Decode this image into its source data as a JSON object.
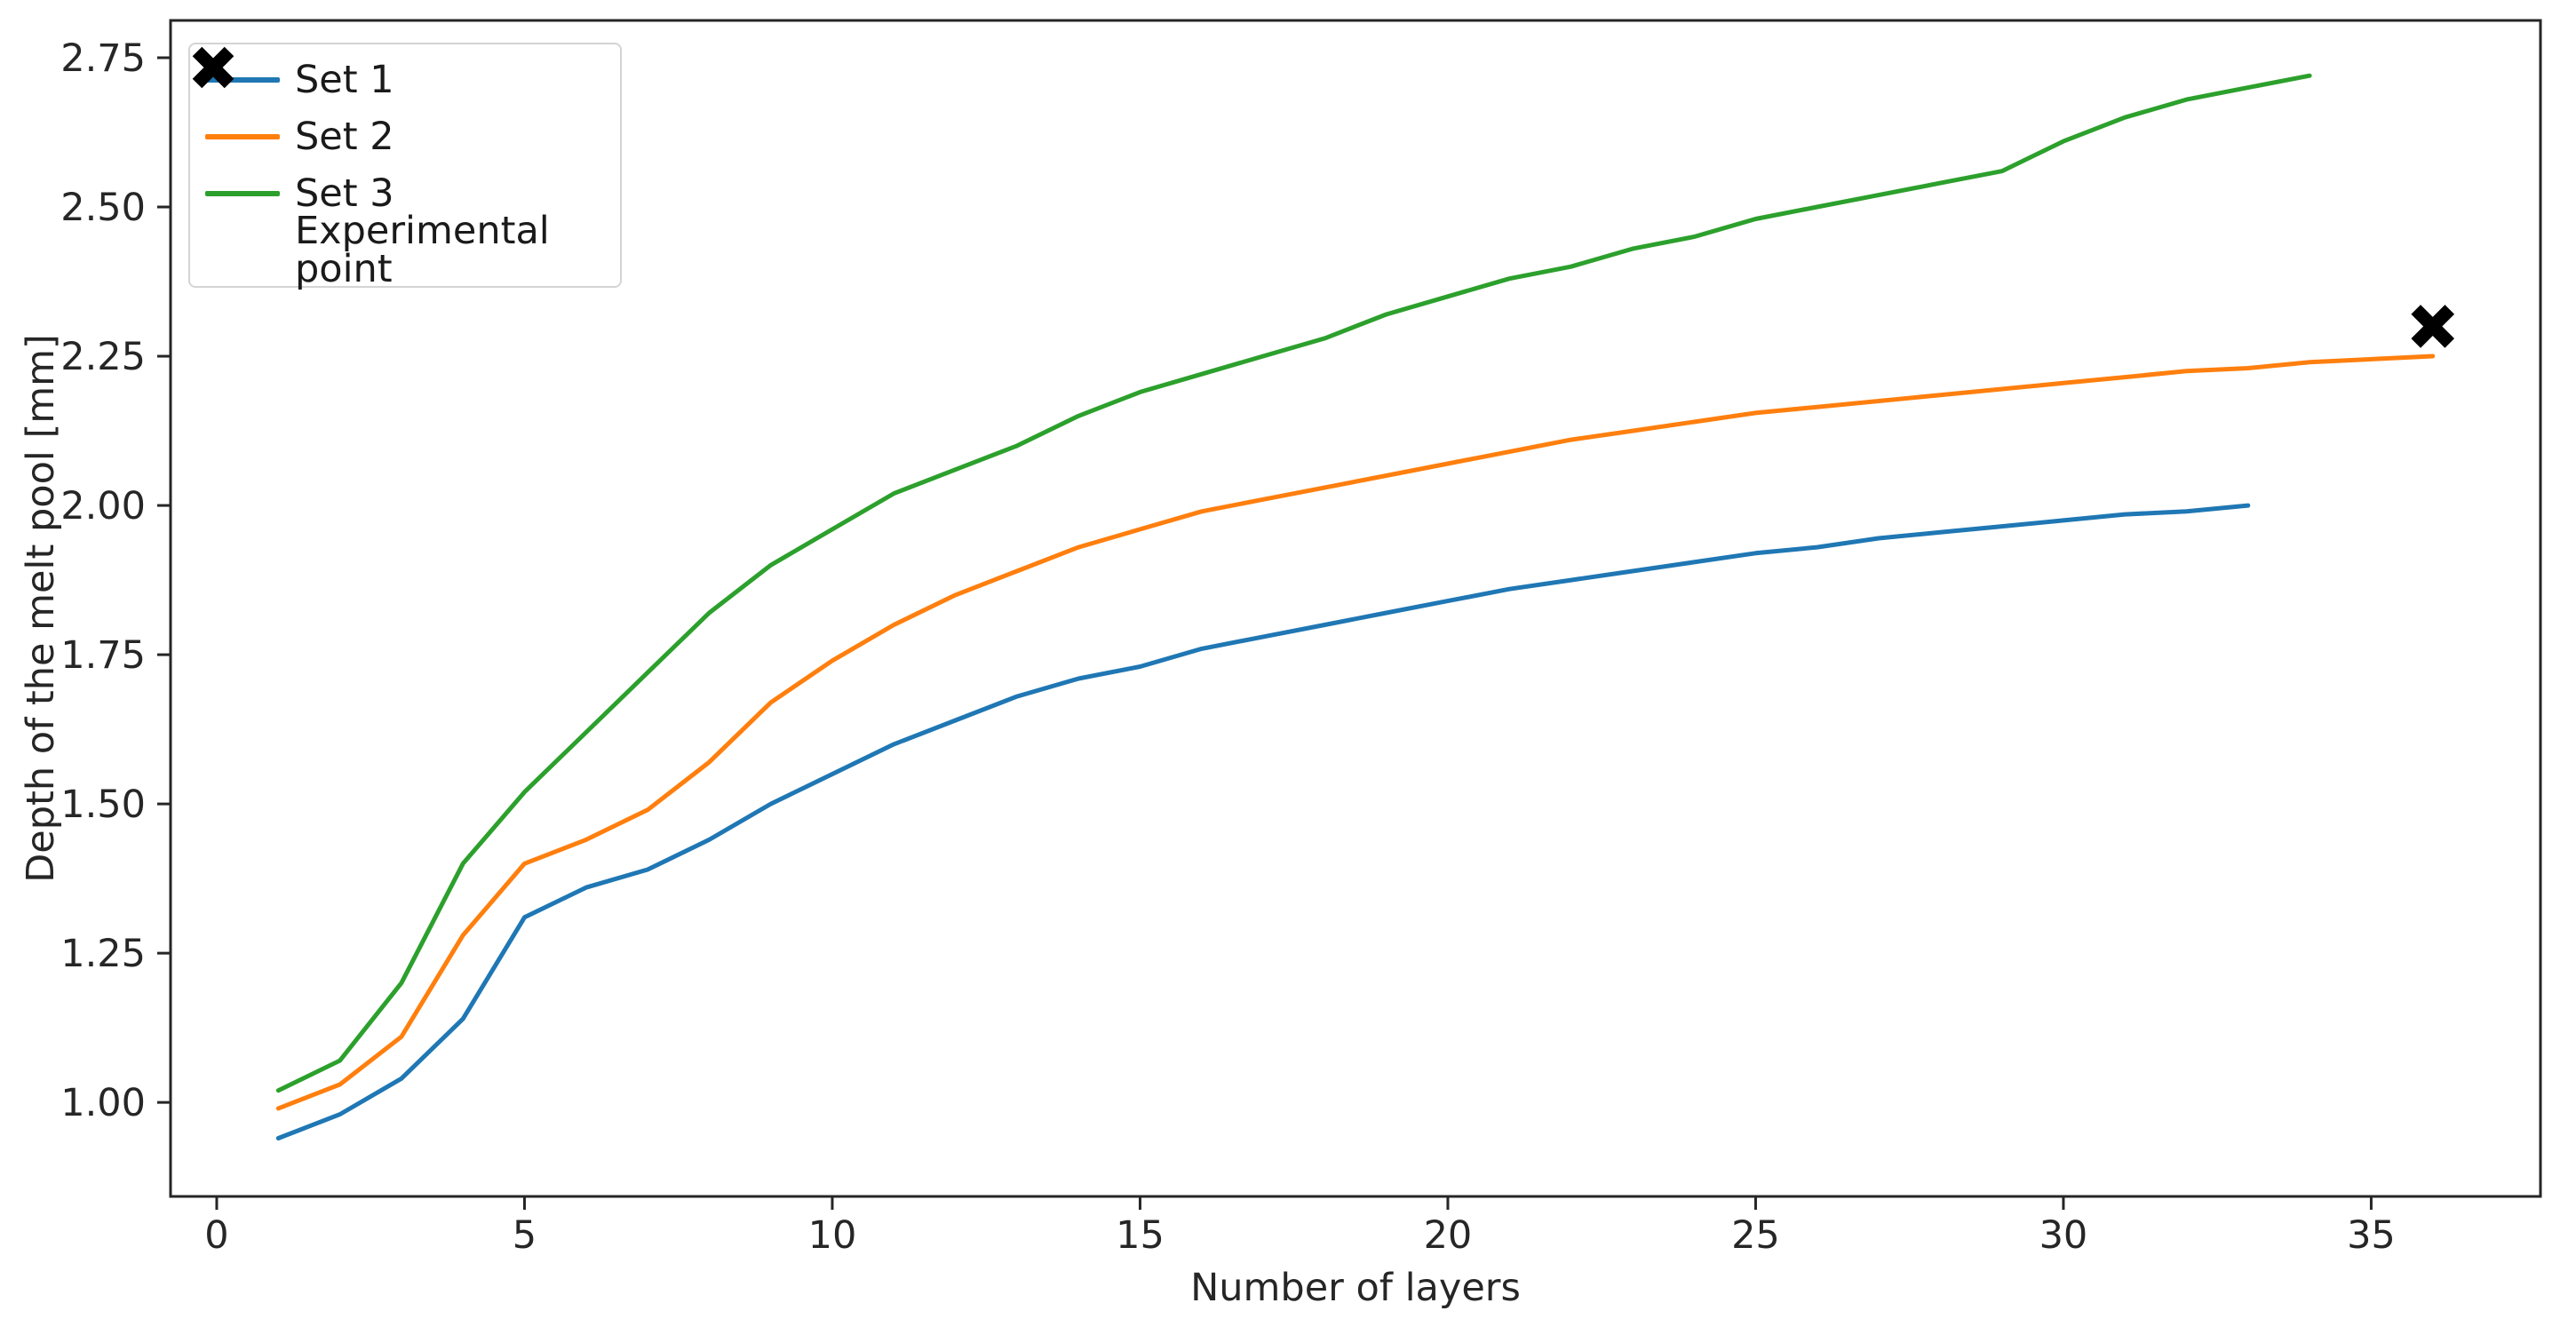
{
  "figure": {
    "background": "#ffffff",
    "spine_color": "#262626"
  },
  "chart_data": {
    "type": "line",
    "title": "",
    "xlabel": "Number of layers",
    "ylabel": "Depth of the melt pool [mm]",
    "grid": false,
    "legend_position": "upper-left",
    "xlim": [
      -0.75,
      37.75
    ],
    "ylim": [
      0.8425,
      2.8125
    ],
    "x_ticks": [
      0,
      5,
      10,
      15,
      20,
      25,
      30,
      35
    ],
    "x_tick_labels": [
      "0",
      "5",
      "10",
      "15",
      "20",
      "25",
      "30",
      "35"
    ],
    "y_ticks": [
      1.0,
      1.25,
      1.5,
      1.75,
      2.0,
      2.25,
      2.5,
      2.75
    ],
    "y_tick_labels": [
      "1.00",
      "1.25",
      "1.50",
      "1.75",
      "2.00",
      "2.25",
      "2.50",
      "2.75"
    ],
    "series": [
      {
        "name": "Set 1",
        "color": "#1f77b4",
        "x": [
          1,
          2,
          3,
          4,
          5,
          6,
          7,
          8,
          9,
          10,
          11,
          12,
          13,
          14,
          15,
          16,
          17,
          18,
          19,
          20,
          21,
          22,
          23,
          24,
          25,
          26,
          27,
          28,
          29,
          30,
          31,
          32,
          33
        ],
        "y": [
          0.94,
          0.98,
          1.04,
          1.14,
          1.31,
          1.36,
          1.39,
          1.44,
          1.5,
          1.55,
          1.6,
          1.64,
          1.68,
          1.71,
          1.73,
          1.76,
          1.78,
          1.8,
          1.82,
          1.84,
          1.86,
          1.875,
          1.89,
          1.905,
          1.92,
          1.93,
          1.945,
          1.955,
          1.965,
          1.975,
          1.985,
          1.99,
          2.0
        ]
      },
      {
        "name": "Set 2",
        "color": "#ff7f0e",
        "x": [
          1,
          2,
          3,
          4,
          5,
          6,
          7,
          8,
          9,
          10,
          11,
          12,
          13,
          14,
          15,
          16,
          17,
          18,
          19,
          20,
          21,
          22,
          23,
          24,
          25,
          26,
          27,
          28,
          29,
          30,
          31,
          32,
          33,
          34,
          35,
          36
        ],
        "y": [
          0.99,
          1.03,
          1.11,
          1.28,
          1.4,
          1.44,
          1.49,
          1.57,
          1.67,
          1.74,
          1.8,
          1.85,
          1.89,
          1.93,
          1.96,
          1.99,
          2.01,
          2.03,
          2.05,
          2.07,
          2.09,
          2.11,
          2.125,
          2.14,
          2.155,
          2.165,
          2.175,
          2.185,
          2.195,
          2.205,
          2.215,
          2.225,
          2.23,
          2.24,
          2.245,
          2.25
        ]
      },
      {
        "name": "Set 3",
        "color": "#2ca02c",
        "x": [
          1,
          2,
          3,
          4,
          5,
          6,
          7,
          8,
          9,
          10,
          11,
          12,
          13,
          14,
          15,
          16,
          17,
          18,
          19,
          20,
          21,
          22,
          23,
          24,
          25,
          26,
          27,
          28,
          29,
          30,
          31,
          32,
          33,
          34
        ],
        "y": [
          1.02,
          1.07,
          1.2,
          1.4,
          1.52,
          1.62,
          1.72,
          1.82,
          1.9,
          1.96,
          2.02,
          2.06,
          2.1,
          2.15,
          2.19,
          2.22,
          2.25,
          2.28,
          2.32,
          2.35,
          2.38,
          2.4,
          2.43,
          2.45,
          2.48,
          2.5,
          2.52,
          2.54,
          2.56,
          2.61,
          2.65,
          2.68,
          2.7,
          2.72
        ]
      }
    ],
    "experimental_point": {
      "label": "Experimental point",
      "marker": "X",
      "color": "#000000",
      "x": 36,
      "y": 2.3
    },
    "legend": [
      {
        "label": "Set 1",
        "type": "line",
        "color": "#1f77b4"
      },
      {
        "label": "Set 2",
        "type": "line",
        "color": "#ff7f0e"
      },
      {
        "label": "Set 3",
        "type": "line",
        "color": "#2ca02c"
      },
      {
        "label": "Experimental point",
        "type": "marker",
        "color": "#000000"
      }
    ]
  }
}
